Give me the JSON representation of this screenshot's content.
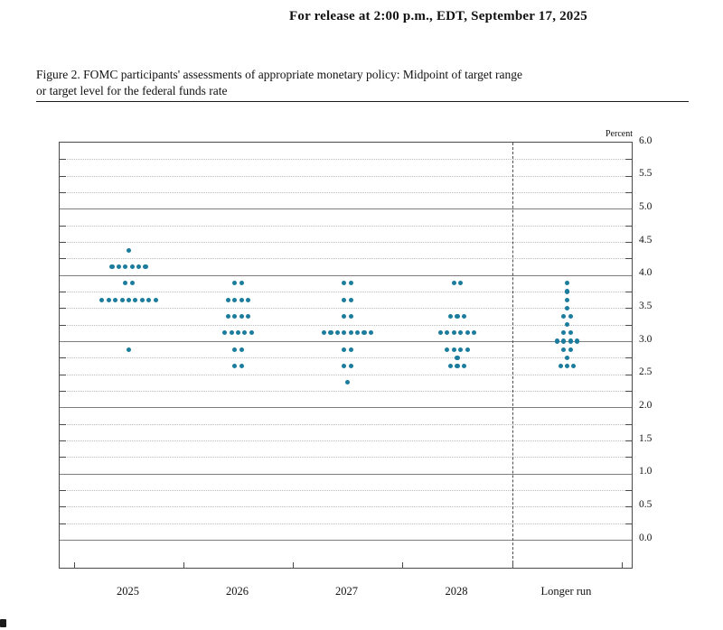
{
  "page": {
    "release_line": "For release at 2:00 p.m., EDT, September 17, 2025",
    "figure_caption": "Figure 2. FOMC participants' assessments of appropriate monetary policy: Midpoint of target range\nor target level for the federal funds rate"
  },
  "chart_data": {
    "type": "scatter",
    "title": "FOMC participants' assessments of appropriate monetary policy: Midpoint of target range or target level for the federal funds rate",
    "unit_label": "Percent",
    "ylim": [
      0.0,
      6.0
    ],
    "y_label_step": 0.5,
    "y_minor_step": 0.25,
    "grid": "on",
    "dot_color": "#1b7c9e",
    "categories": [
      "2025",
      "2026",
      "2027",
      "2028",
      "Longer run"
    ],
    "series": [
      {
        "category": "2025",
        "dots": [
          [
            4.375,
            1
          ],
          [
            4.125,
            6
          ],
          [
            3.875,
            2
          ],
          [
            3.625,
            9
          ],
          [
            2.875,
            1
          ]
        ]
      },
      {
        "category": "2026",
        "dots": [
          [
            3.875,
            2
          ],
          [
            3.625,
            4
          ],
          [
            3.375,
            4
          ],
          [
            3.125,
            5
          ],
          [
            2.875,
            2
          ],
          [
            2.625,
            2
          ]
        ]
      },
      {
        "category": "2027",
        "dots": [
          [
            3.875,
            2
          ],
          [
            3.625,
            2
          ],
          [
            3.375,
            2
          ],
          [
            3.125,
            8
          ],
          [
            2.875,
            2
          ],
          [
            2.625,
            2
          ],
          [
            2.375,
            1
          ]
        ]
      },
      {
        "category": "2028",
        "dots": [
          [
            3.875,
            2
          ],
          [
            3.375,
            3
          ],
          [
            3.125,
            6
          ],
          [
            2.875,
            4
          ],
          [
            2.75,
            1
          ],
          [
            2.625,
            3
          ]
        ]
      },
      {
        "category": "Longer run",
        "dots": [
          [
            3.875,
            1
          ],
          [
            3.75,
            1
          ],
          [
            3.625,
            1
          ],
          [
            3.5,
            1
          ],
          [
            3.375,
            2
          ],
          [
            3.25,
            1
          ],
          [
            3.125,
            2
          ],
          [
            3.0,
            4
          ],
          [
            2.875,
            2
          ],
          [
            2.75,
            1
          ],
          [
            2.625,
            3
          ]
        ]
      }
    ]
  }
}
